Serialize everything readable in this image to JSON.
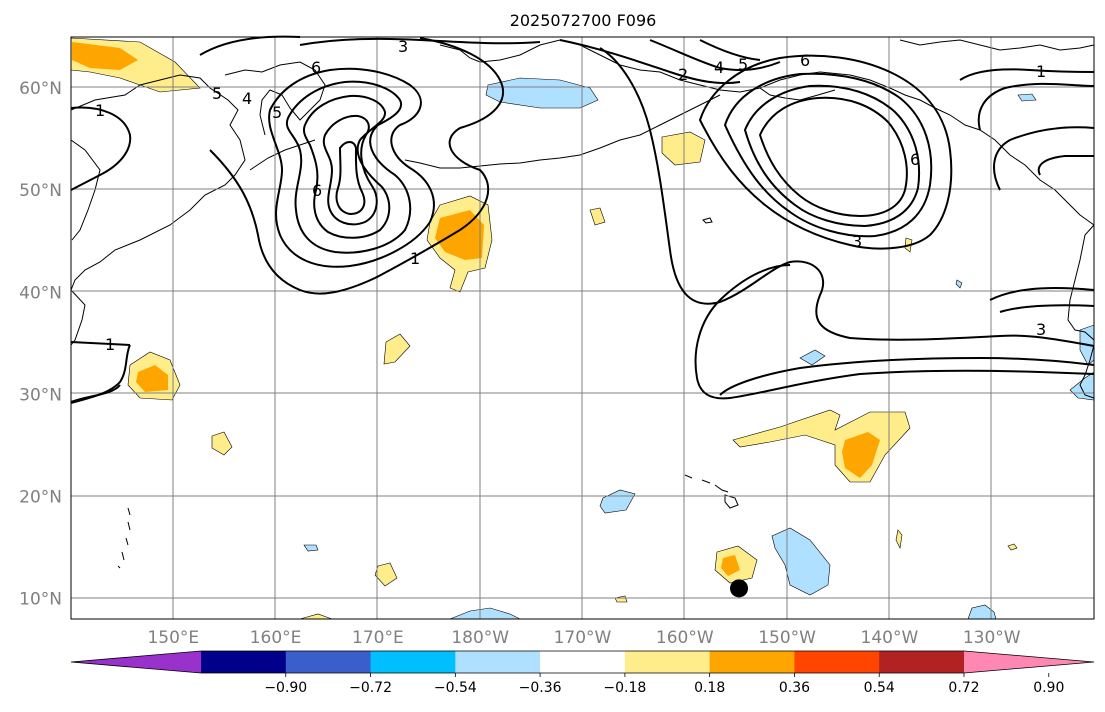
{
  "title": "2025072700 F096",
  "map": {
    "lat_labels": [
      "60°N",
      "50°N",
      "40°N",
      "30°N",
      "20°N",
      "10°N"
    ],
    "lat_values": [
      60,
      50,
      40,
      30,
      20,
      10
    ],
    "lon_labels": [
      "150°E",
      "160°E",
      "170°E",
      "180°W",
      "170°W",
      "160°W",
      "150°W",
      "140°W",
      "130°W"
    ],
    "lon_values": [
      150,
      160,
      170,
      180,
      190,
      200,
      210,
      220,
      230
    ],
    "contour_labels": [
      {
        "text": "3",
        "name": "contour-label-3-north"
      },
      {
        "text": "6",
        "name": "contour-label-6-kamchatka"
      },
      {
        "text": "5",
        "name": "contour-label-5-west"
      },
      {
        "text": "4",
        "name": "contour-label-4-west"
      },
      {
        "text": "5",
        "name": "contour-label-5-kamchatka"
      },
      {
        "text": "6",
        "name": "contour-label-6-low"
      },
      {
        "text": "1",
        "name": "contour-label-1-northwest"
      },
      {
        "text": "1",
        "name": "contour-label-1-central"
      },
      {
        "text": "1",
        "name": "contour-label-1-west"
      },
      {
        "text": "2",
        "name": "contour-label-2-aleutian"
      },
      {
        "text": "4",
        "name": "contour-label-4-aleutian"
      },
      {
        "text": "5",
        "name": "contour-label-5-aleutian"
      },
      {
        "text": "6",
        "name": "contour-label-6-aleutian"
      },
      {
        "text": "6",
        "name": "contour-label-6-gulf"
      },
      {
        "text": "3",
        "name": "contour-label-3-gulf"
      },
      {
        "text": "3",
        "name": "contour-label-3-east"
      },
      {
        "text": "1",
        "name": "contour-label-1-northeast"
      }
    ],
    "marker": {
      "name": "storm-position",
      "lat": 11.0,
      "lon": 205.3
    }
  },
  "colorbar": {
    "labels": [
      "−0.90",
      "−0.72",
      "−0.54",
      "−0.36",
      "−0.18",
      "0.18",
      "0.36",
      "0.54",
      "0.72",
      "0.90"
    ],
    "bounds": [
      -0.9,
      -0.72,
      -0.54,
      -0.36,
      -0.18,
      0.18,
      0.36,
      0.54,
      0.72,
      0.9
    ],
    "colors": [
      "#9932cc",
      "#00008b",
      "#3a5fcd",
      "#00bfff",
      "#b0e0ff",
      "#ffffff",
      "#ffec8b",
      "#ffa500",
      "#ff4500",
      "#b22222",
      "#ff88b2"
    ]
  },
  "chart_data": {
    "type": "contour",
    "title": "2025072700 F096",
    "x_axis": {
      "label": "",
      "ticks": [
        "150°E",
        "160°E",
        "170°E",
        "180°W",
        "170°W",
        "160°W",
        "150°W",
        "140°W",
        "130°W"
      ],
      "range_deg_east": [
        140,
        240
      ]
    },
    "y_axis": {
      "label": "",
      "ticks": [
        "10°N",
        "20°N",
        "30°N",
        "40°N",
        "50°N",
        "60°N"
      ],
      "range_deg_north": [
        8,
        65
      ]
    },
    "contour_levels": [
      1,
      2,
      3,
      4,
      5,
      6
    ],
    "shading_levels": [
      -0.9,
      -0.72,
      -0.54,
      -0.36,
      -0.18,
      0.18,
      0.36,
      0.54,
      0.72,
      0.9
    ],
    "point_marker": {
      "lat": 11.0,
      "lon": 205.3
    }
  }
}
